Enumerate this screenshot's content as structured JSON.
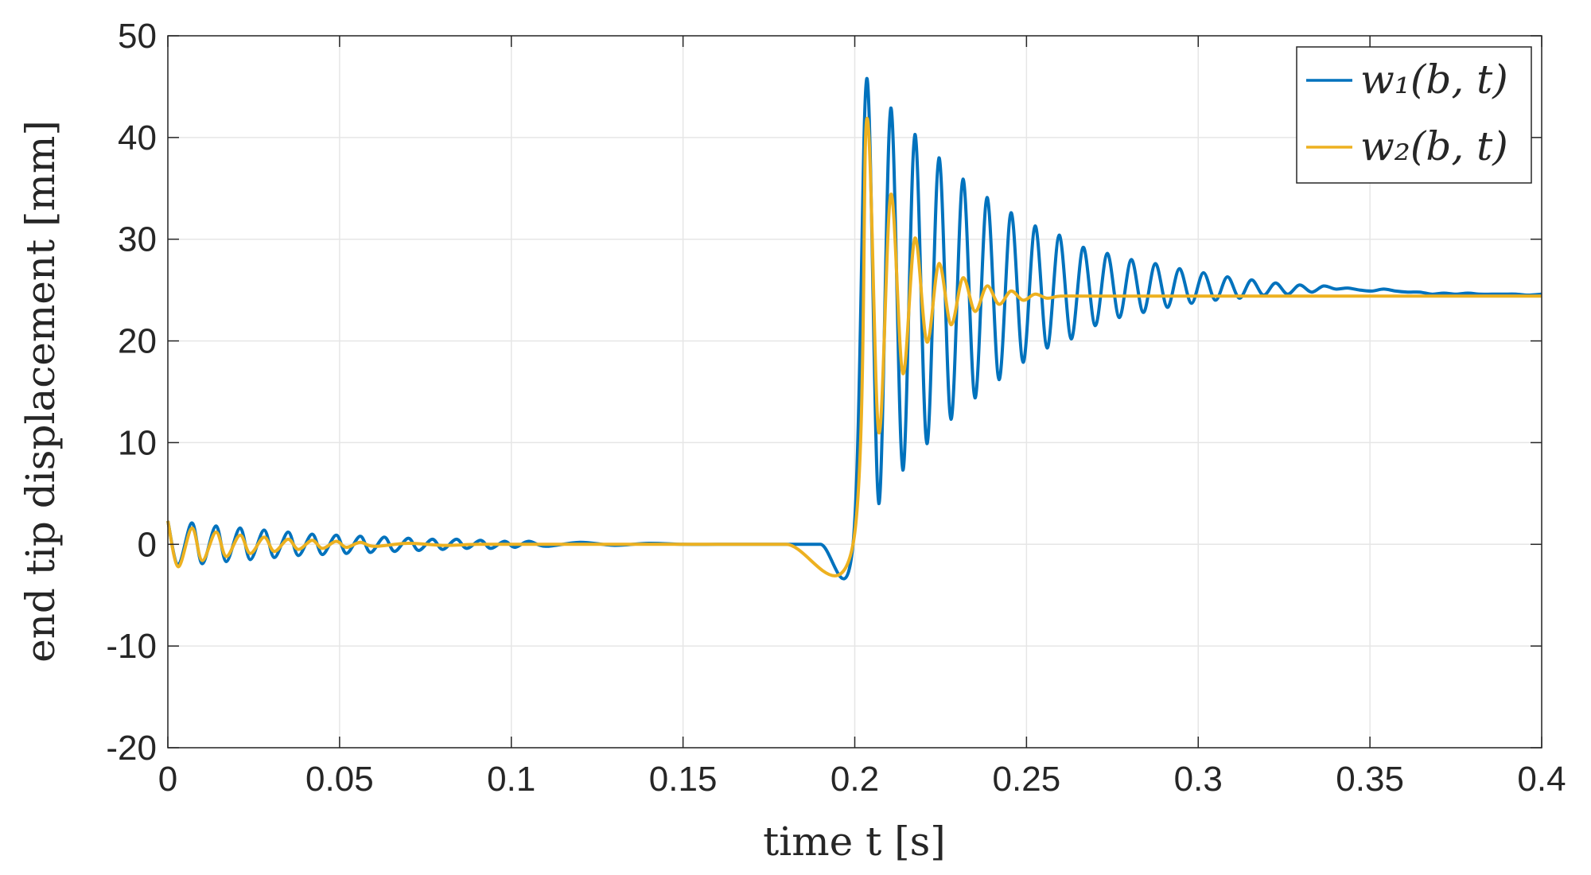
{
  "chart_data": {
    "type": "line",
    "title": "",
    "xlabel": "time t [s]",
    "ylabel": "end tip displacement [mm]",
    "xlim": [
      0,
      0.4
    ],
    "ylim": [
      -20,
      50
    ],
    "xticks": [
      0,
      0.05,
      0.1,
      0.15,
      0.2,
      0.25,
      0.3,
      0.35,
      0.4
    ],
    "xtick_labels": [
      "0",
      "0.05",
      "0.1",
      "0.15",
      "0.2",
      "0.25",
      "0.3",
      "0.35",
      "0.4"
    ],
    "yticks": [
      -20,
      -10,
      0,
      10,
      20,
      30,
      40,
      50
    ],
    "ytick_labels": [
      "-20",
      "-10",
      "0",
      "10",
      "20",
      "30",
      "40",
      "50"
    ],
    "grid": true,
    "legend_position": "top-right",
    "series": [
      {
        "name": "w1(b,t)",
        "color": "#0072BD",
        "x": [
          0,
          0.003,
          0.007,
          0.01,
          0.014,
          0.017,
          0.021,
          0.024,
          0.028,
          0.031,
          0.035,
          0.038,
          0.042,
          0.045,
          0.049,
          0.052,
          0.056,
          0.059,
          0.063,
          0.066,
          0.07,
          0.073,
          0.077,
          0.08,
          0.084,
          0.087,
          0.091,
          0.094,
          0.098,
          0.101,
          0.105,
          0.11,
          0.12,
          0.13,
          0.14,
          0.15,
          0.16,
          0.17,
          0.18,
          0.19,
          0.1995,
          0.2035,
          0.207,
          0.2105,
          0.214,
          0.2175,
          0.221,
          0.2245,
          0.228,
          0.2315,
          0.235,
          0.2385,
          0.242,
          0.2455,
          0.249,
          0.2525,
          0.256,
          0.2595,
          0.263,
          0.2665,
          0.27,
          0.2735,
          0.277,
          0.2805,
          0.284,
          0.2875,
          0.291,
          0.2945,
          0.298,
          0.3015,
          0.305,
          0.3085,
          0.312,
          0.3155,
          0.319,
          0.3225,
          0.326,
          0.3295,
          0.333,
          0.3365,
          0.34,
          0.3435,
          0.347,
          0.3505,
          0.354,
          0.3575,
          0.361,
          0.3645,
          0.368,
          0.3715,
          0.375,
          0.3785,
          0.382,
          0.3855,
          0.389,
          0.3925,
          0.396,
          0.4
        ],
        "y": [
          2.3,
          -2.0,
          2.1,
          -1.9,
          1.8,
          -1.7,
          1.6,
          -1.5,
          1.4,
          -1.3,
          1.2,
          -1.1,
          1.0,
          -1.0,
          0.9,
          -0.9,
          0.8,
          -0.8,
          0.7,
          -0.7,
          0.6,
          -0.6,
          0.5,
          -0.5,
          0.5,
          -0.4,
          0.4,
          -0.4,
          0.3,
          -0.3,
          0.3,
          -0.2,
          0.2,
          -0.1,
          0.1,
          0.0,
          0.0,
          0.0,
          0.0,
          0.0,
          0.0,
          45.8,
          4.0,
          42.9,
          7.3,
          40.3,
          9.9,
          38.0,
          12.3,
          35.9,
          14.4,
          34.1,
          16.2,
          32.6,
          17.9,
          31.3,
          19.3,
          30.4,
          20.2,
          29.2,
          21.5,
          28.6,
          22.3,
          28.0,
          22.8,
          27.6,
          23.3,
          27.1,
          23.7,
          26.7,
          24.0,
          26.3,
          24.2,
          26.0,
          24.5,
          25.7,
          24.6,
          25.5,
          24.8,
          25.4,
          25.1,
          25.2,
          25.0,
          24.9,
          25.1,
          24.9,
          24.8,
          24.8,
          24.6,
          24.7,
          24.6,
          24.7,
          24.6,
          24.6,
          24.6,
          24.6,
          24.5,
          24.6
        ],
        "note_idx_fix": true
      },
      {
        "name": "w2(b,t)",
        "color": "#EDB120",
        "x": [
          0,
          0.003,
          0.007,
          0.01,
          0.014,
          0.017,
          0.021,
          0.024,
          0.028,
          0.031,
          0.035,
          0.038,
          0.042,
          0.045,
          0.049,
          0.052,
          0.056,
          0.06,
          0.07,
          0.08,
          0.09,
          0.1,
          0.12,
          0.14,
          0.16,
          0.18,
          0.1995,
          0.2035,
          0.207,
          0.2105,
          0.214,
          0.2175,
          0.221,
          0.2245,
          0.228,
          0.2315,
          0.235,
          0.2385,
          0.242,
          0.2455,
          0.249,
          0.2525,
          0.256,
          0.26,
          0.27,
          0.28,
          0.3,
          0.32,
          0.34,
          0.36,
          0.38,
          0.4
        ],
        "y": [
          2.3,
          -2.2,
          1.6,
          -1.6,
          1.2,
          -1.2,
          0.9,
          -0.9,
          0.7,
          -0.7,
          0.5,
          -0.5,
          0.4,
          -0.4,
          0.3,
          -0.3,
          0.2,
          -0.2,
          0.1,
          -0.1,
          0.0,
          0.0,
          0.0,
          0.0,
          0.0,
          0.0,
          0.0,
          41.8,
          11.0,
          34.4,
          16.8,
          30.1,
          19.9,
          27.6,
          21.6,
          26.2,
          22.9,
          25.4,
          23.6,
          24.9,
          24.0,
          24.6,
          24.2,
          24.4,
          24.4,
          24.4,
          24.4,
          24.4,
          24.4,
          24.4,
          24.4,
          24.4
        ]
      }
    ]
  },
  "legend": {
    "items": [
      {
        "label": "w₁(b, t)",
        "color": "#0072BD"
      },
      {
        "label": "w₂(b, t)",
        "color": "#EDB120"
      }
    ]
  }
}
